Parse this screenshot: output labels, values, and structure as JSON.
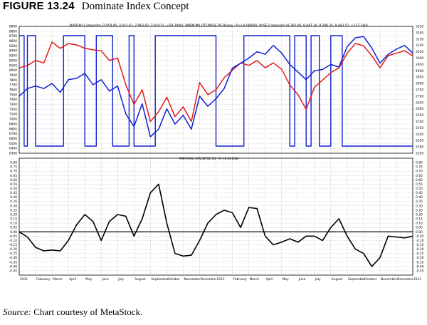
{
  "figure": {
    "number": "FIGURE 13.24",
    "caption": "Dominate Index Concept",
    "source_label": "Source:",
    "source_text": "Chart courtesy of MetaStock."
  },
  "colors": {
    "nasdaq": "#1020d0",
    "nyse": "#e01c1c",
    "binary": "#1020d0",
    "rs": "#000000",
    "grid": "#b0b0b0"
  },
  "chart_data": [
    {
      "type": "line",
      "title": "NASDAQ Composite (2,958.45, 3,021.41, 2,963.82, 3,019.51, +59.2000), PMFM MX OTC/NYSE RS Binary - R (+0.00000), NYSE Composite (8,302.06, 8,447.30, 8,296.35, 8,443.51, +127.340)",
      "x_labels": [
        "2011",
        "February",
        "March",
        "April",
        "May",
        "June",
        "July",
        "August",
        "September",
        "October",
        "November",
        "December",
        "2012",
        "February",
        "March",
        "April",
        "May",
        "June",
        "July",
        "August",
        "September",
        "October",
        "November",
        "December",
        "2013"
      ],
      "y_left": {
        "range": [
          6300,
          8900
        ],
        "ticks": [
          6300,
          6400,
          6500,
          6600,
          6700,
          6800,
          6900,
          7000,
          7100,
          7200,
          7300,
          7400,
          7500,
          7600,
          7700,
          7800,
          7900,
          8000,
          8100,
          8200,
          8300,
          8400,
          8500,
          8600,
          8700,
          8800,
          8900
        ]
      },
      "y_right": {
        "range": [
          2250,
          3250
        ],
        "ticks": [
          2250,
          2300,
          2350,
          2400,
          2450,
          2500,
          2550,
          2600,
          2650,
          2700,
          2750,
          2800,
          2850,
          2900,
          2950,
          3000,
          3050,
          3100,
          3150,
          3200,
          3250
        ]
      },
      "series": [
        {
          "name": "NASDAQ Composite",
          "axis": "right",
          "x": [
            0.0,
            0.5,
            1.0,
            1.5,
            2.0,
            2.5,
            3.0,
            3.5,
            4.0,
            4.5,
            5.0,
            5.5,
            6.0,
            6.5,
            7.0,
            7.5,
            8.0,
            8.5,
            9.0,
            9.5,
            10.0,
            10.5,
            11.0,
            11.5,
            12.0,
            12.5,
            13.0,
            13.5,
            14.0,
            14.5,
            15.0,
            15.5,
            16.0,
            16.5,
            17.0,
            17.5,
            18.0,
            18.5,
            19.0,
            19.5,
            20.0,
            20.5,
            21.0,
            21.5,
            22.0,
            22.5,
            23.0,
            23.5,
            24.0
          ],
          "values": [
            2700,
            2760,
            2780,
            2760,
            2800,
            2730,
            2830,
            2840,
            2880,
            2790,
            2830,
            2740,
            2780,
            2560,
            2460,
            2640,
            2380,
            2440,
            2600,
            2480,
            2550,
            2440,
            2700,
            2620,
            2680,
            2760,
            2920,
            2960,
            3000,
            3050,
            3030,
            3100,
            3040,
            2950,
            2890,
            2830,
            2900,
            2910,
            2950,
            2930,
            3090,
            3160,
            3170,
            3080,
            2960,
            3030,
            3070,
            3100,
            3040
          ]
        },
        {
          "name": "NYSE Composite",
          "axis": "left",
          "x": [
            0.0,
            0.5,
            1.0,
            1.5,
            2.0,
            2.5,
            3.0,
            3.5,
            4.0,
            4.5,
            5.0,
            5.5,
            6.0,
            6.5,
            7.0,
            7.5,
            8.0,
            8.5,
            9.0,
            9.5,
            10.0,
            10.5,
            11.0,
            11.5,
            12.0,
            12.5,
            13.0,
            13.5,
            14.0,
            14.5,
            15.0,
            15.5,
            16.0,
            16.5,
            17.0,
            17.5,
            18.0,
            18.5,
            19.0,
            19.5,
            20.0,
            20.5,
            21.0,
            21.5,
            22.0,
            22.5,
            23.0,
            23.5,
            24.0
          ],
          "values": [
            8050,
            8100,
            8200,
            8150,
            8580,
            8450,
            8550,
            8520,
            8450,
            8420,
            8400,
            8200,
            8250,
            7700,
            7300,
            7600,
            6950,
            7150,
            7450,
            7050,
            7250,
            6950,
            7750,
            7500,
            7600,
            7850,
            8000,
            8150,
            8100,
            8200,
            8050,
            8150,
            8020,
            7700,
            7500,
            7200,
            7650,
            7800,
            7950,
            8050,
            8350,
            8550,
            8500,
            8300,
            8050,
            8300,
            8350,
            8400,
            8300
          ]
        },
        {
          "name": "PMFM MX OTC/NYSE RS Binary - R",
          "axis": "left",
          "binary": true,
          "x": [
            0.0,
            0.3,
            0.3,
            0.5,
            0.5,
            1.0,
            1.0,
            2.7,
            2.7,
            4.0,
            4.0,
            4.7,
            4.7,
            5.7,
            5.7,
            6.7,
            6.7,
            7.0,
            7.0,
            8.3,
            8.3,
            12.0,
            12.0,
            13.7,
            13.7,
            16.5,
            16.5,
            16.8,
            16.8,
            17.5,
            17.5,
            17.8,
            17.8,
            18.3,
            18.3,
            19.0,
            19.0,
            19.7,
            19.7,
            24.0
          ],
          "values": [
            1,
            1,
            0,
            0,
            1,
            1,
            0,
            0,
            1,
            1,
            0,
            0,
            1,
            1,
            0,
            0,
            1,
            1,
            0,
            0,
            1,
            1,
            0,
            0,
            1,
            1,
            0,
            0,
            1,
            1,
            0,
            0,
            1,
            1,
            0,
            0,
            1,
            1,
            0,
            0
          ]
        }
      ]
    },
    {
      "type": "line",
      "title": "PMFM MX OTC/NYSE RS - R (-0.05159)",
      "y_range": [
        -0.5,
        0.85
      ],
      "ticks": [
        -0.45,
        -0.4,
        -0.35,
        -0.3,
        -0.25,
        -0.2,
        -0.15,
        -0.1,
        -0.05,
        0.0,
        0.05,
        0.1,
        0.15,
        0.2,
        0.25,
        0.3,
        0.35,
        0.4,
        0.45,
        0.5,
        0.55,
        0.6,
        0.65,
        0.7,
        0.75,
        0.8
      ],
      "tick_labels": [
        "-0.45",
        "-0.40",
        "-0.35",
        "-0.30",
        "-0.25",
        "-0.20",
        "-0.15",
        "-0.10",
        "-0.05",
        "0.00",
        "0.05",
        "0.10",
        "0.15",
        "0.20",
        "0.25",
        "0.30",
        "0.35",
        "0.40",
        "0.45",
        "0.50",
        "0.55",
        "0.60",
        "0.65",
        "0.70",
        "0.75",
        "0.80"
      ],
      "reference_line": 0,
      "series": [
        {
          "name": "PMFM MX OTC/NYSE RS - R",
          "x": [
            0.0,
            0.5,
            1.0,
            1.5,
            2.0,
            2.5,
            3.0,
            3.5,
            4.0,
            4.5,
            5.0,
            5.5,
            6.0,
            6.5,
            7.0,
            7.5,
            8.0,
            8.5,
            9.0,
            9.5,
            10.0,
            10.5,
            11.0,
            11.5,
            12.0,
            12.5,
            13.0,
            13.5,
            14.0,
            14.5,
            15.0,
            15.5,
            16.0,
            16.5,
            17.0,
            17.5,
            18.0,
            18.5,
            19.0,
            19.5,
            20.0,
            20.5,
            21.0,
            21.5,
            22.0,
            22.5,
            23.0,
            23.5,
            24.0
          ],
          "values": [
            0.0,
            -0.06,
            -0.18,
            -0.22,
            -0.21,
            -0.22,
            -0.1,
            0.08,
            0.2,
            0.12,
            -0.1,
            0.12,
            0.2,
            0.18,
            -0.05,
            0.15,
            0.45,
            0.55,
            0.1,
            -0.25,
            -0.28,
            -0.27,
            -0.1,
            0.1,
            0.2,
            0.25,
            0.22,
            0.05,
            0.28,
            0.27,
            -0.05,
            -0.15,
            -0.12,
            -0.08,
            -0.12,
            -0.05,
            -0.05,
            -0.1,
            0.05,
            0.15,
            -0.05,
            -0.2,
            -0.25,
            -0.4,
            -0.3,
            -0.05,
            -0.06,
            -0.07,
            -0.05
          ]
        }
      ]
    }
  ]
}
